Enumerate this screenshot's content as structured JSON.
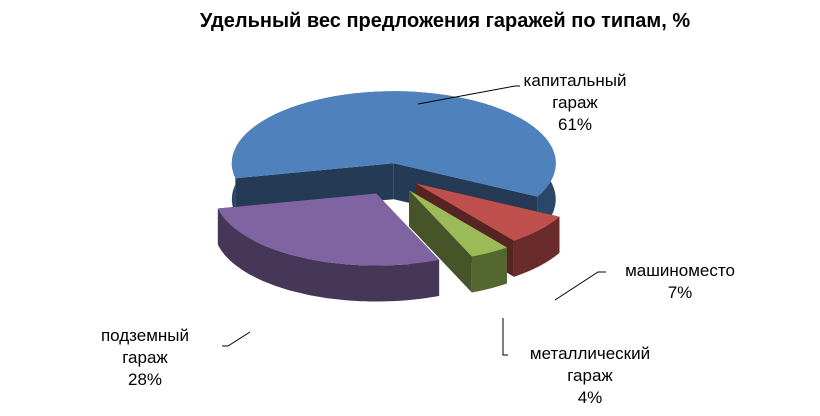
{
  "chart_data": {
    "type": "pie",
    "title": "Удельный вес предложения гаражей по типам, %",
    "categories": [
      "капитальный гараж",
      "машиноместо",
      "металлический гараж",
      "подземный гараж"
    ],
    "values": [
      61,
      7,
      4,
      28
    ],
    "value_labels": [
      "61%",
      "7%",
      "4%",
      "28%"
    ],
    "colors": [
      "#4f81bd",
      "#c0504d",
      "#9bbb59",
      "#8064a2"
    ]
  }
}
